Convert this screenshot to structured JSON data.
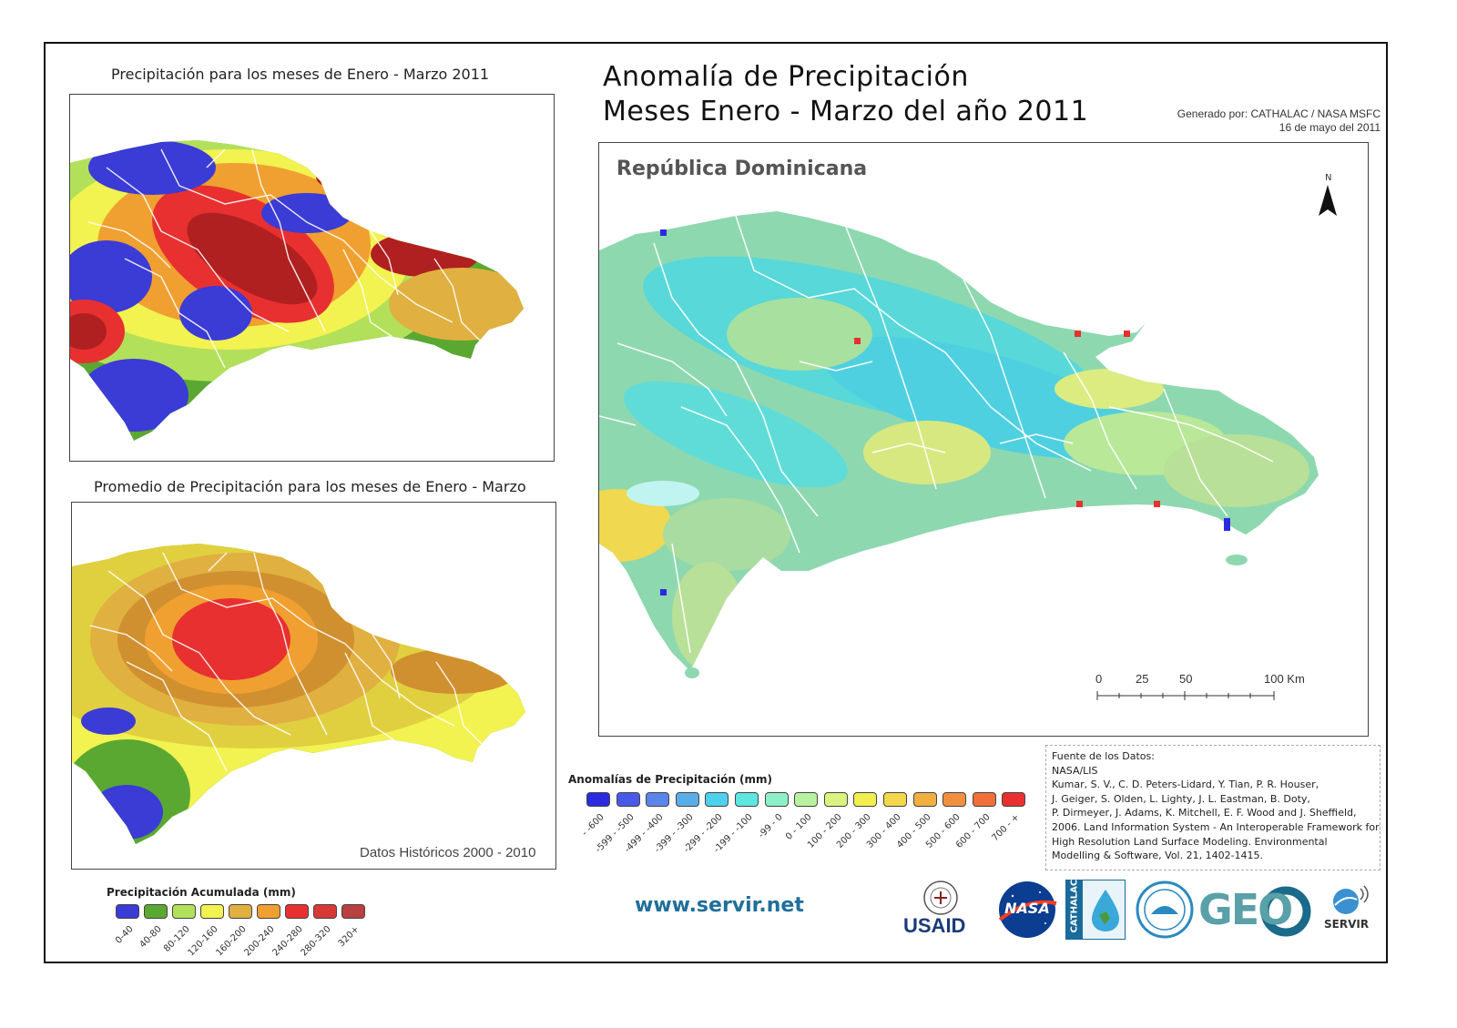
{
  "inset_top": {
    "title": "Precipitación para los meses de Enero - Marzo 2011"
  },
  "inset_bottom": {
    "title": "Promedio de Precipitación para los meses de Enero - Marzo",
    "note": "Datos Históricos 2000 - 2010"
  },
  "main": {
    "title_line1": "Anomalía de Precipitación",
    "title_line2": "Meses Enero - Marzo del año 2011",
    "credit_line1": "Generado por: CATHALAC / NASA MSFC",
    "credit_line2": "16 de mayo del 2011",
    "country_label": "República Dominicana",
    "north_label": "N",
    "scale_labels": [
      "0",
      "25",
      "50",
      "100 Km"
    ]
  },
  "legend_accum": {
    "title": "Precipitación Acumulada (mm)",
    "items": [
      {
        "label": "0-40",
        "color": "#3b3bd6"
      },
      {
        "label": "40-80",
        "color": "#5aa832"
      },
      {
        "label": "80-120",
        "color": "#b3e05a"
      },
      {
        "label": "120-160",
        "color": "#f2f250"
      },
      {
        "label": "160-200",
        "color": "#e0b040"
      },
      {
        "label": "200-240",
        "color": "#f0a030"
      },
      {
        "label": "240-280",
        "color": "#e83030"
      },
      {
        "label": "280-320",
        "color": "#d83838"
      },
      {
        "label": "320+",
        "color": "#b84040"
      }
    ]
  },
  "legend_anom": {
    "title": "Anomalías de Precipitación (mm)",
    "items": [
      {
        "label": "- -600",
        "color": "#2a2ae0"
      },
      {
        "label": "-599 - -500",
        "color": "#4a5ae8"
      },
      {
        "label": "-499 - -400",
        "color": "#5a86ea"
      },
      {
        "label": "-399 - -300",
        "color": "#5aaee8"
      },
      {
        "label": "-299 - -200",
        "color": "#4ed0ec"
      },
      {
        "label": "-199 - -100",
        "color": "#5ee6e0"
      },
      {
        "label": "-99 - 0",
        "color": "#8ef0c8"
      },
      {
        "label": "0 - 100",
        "color": "#b8f2a0"
      },
      {
        "label": "100 - 200",
        "color": "#dcf280"
      },
      {
        "label": "200 - 300",
        "color": "#f0ee50"
      },
      {
        "label": "300 - 400",
        "color": "#f2d84a"
      },
      {
        "label": "400 - 500",
        "color": "#f0b040"
      },
      {
        "label": "500 - 600",
        "color": "#f09040"
      },
      {
        "label": "600 - 700",
        "color": "#f07038"
      },
      {
        "label": "700 - +",
        "color": "#e83030"
      }
    ]
  },
  "references": {
    "lines": [
      "Fuente de los Datos:",
      "NASA/LIS",
      "Kumar, S. V., C. D. Peters-Lidard, Y. Tian, P. R. Houser,",
      "J. Geiger, S. Olden, L. Lighty, J. L. Eastman, B. Doty,",
      "P. Dirmeyer, J. Adams, K. Mitchell, E. F. Wood and J. Sheffield,",
      " 2006. Land Information System - An Interoperable Framework for",
      "High Resolution Land Surface Modeling. Environmental",
      "Modelling & Software, Vol. 21, 1402-1415."
    ]
  },
  "footer": {
    "url": "www.servir.net",
    "logos": {
      "usaid": "USAID",
      "nasa": "NASA",
      "cathalac": "CATHALAC",
      "geo": "GEO",
      "servir": "SERVIR"
    }
  }
}
